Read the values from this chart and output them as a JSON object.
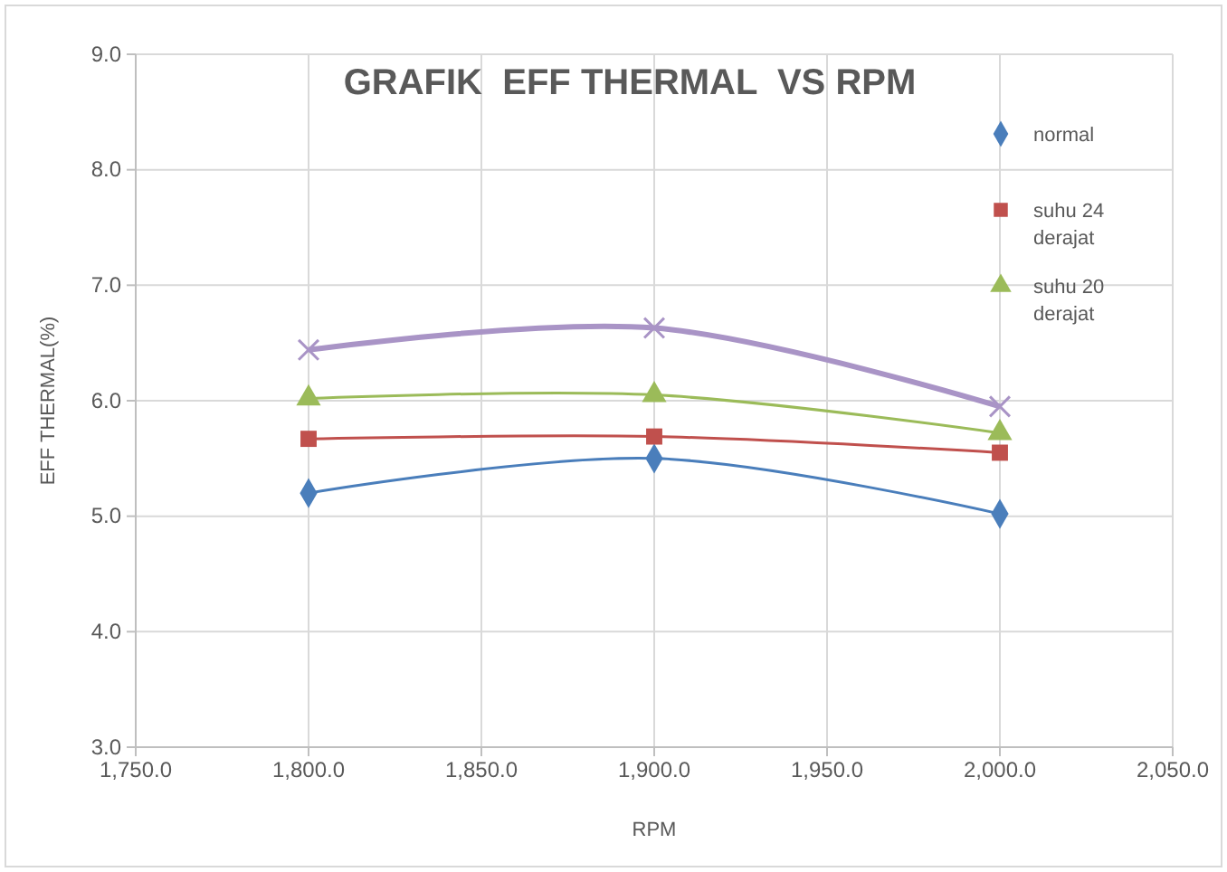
{
  "chart_data": {
    "type": "line",
    "title": "GRAFIK  EFF THERMAL  VS RPM",
    "xlabel": "RPM",
    "ylabel": "EFF THERMAL(%)",
    "x": [
      1800,
      1900,
      2000
    ],
    "series": [
      {
        "name": "normal",
        "color": "#4a7ebb",
        "marker": "diamond",
        "values": [
          5.2,
          5.5,
          5.02
        ]
      },
      {
        "name": "suhu 24 derajat",
        "color": "#c0504d",
        "marker": "square",
        "values": [
          5.67,
          5.69,
          5.55
        ]
      },
      {
        "name": "suhu 20 derajat",
        "color": "#9bbb59",
        "marker": "triangle",
        "values": [
          6.02,
          6.05,
          5.72
        ]
      },
      {
        "color": "#a994c6",
        "marker": "cross",
        "values": [
          6.44,
          6.63,
          5.95
        ]
      }
    ],
    "xlim": [
      1750,
      2050
    ],
    "xticks": [
      {
        "value": 1750,
        "label": "1,750.0"
      },
      {
        "value": 1800,
        "label": "1,800.0"
      },
      {
        "value": 1850,
        "label": "1,850.0"
      },
      {
        "value": 1900,
        "label": "1,900.0"
      },
      {
        "value": 1950,
        "label": "1,950.0"
      },
      {
        "value": 2000,
        "label": "2,000.0"
      },
      {
        "value": 2050,
        "label": "2,050.0"
      }
    ],
    "ylim": [
      3,
      9
    ],
    "yticks": [
      {
        "value": 3,
        "label": "3.0"
      },
      {
        "value": 4,
        "label": "4.0"
      },
      {
        "value": 5,
        "label": "5.0"
      },
      {
        "value": 6,
        "label": "6.0"
      },
      {
        "value": 7,
        "label": "7.0"
      },
      {
        "value": 8,
        "label": "8.0"
      },
      {
        "value": 9,
        "label": "9.0"
      }
    ],
    "grid": true,
    "legend": "top right"
  }
}
